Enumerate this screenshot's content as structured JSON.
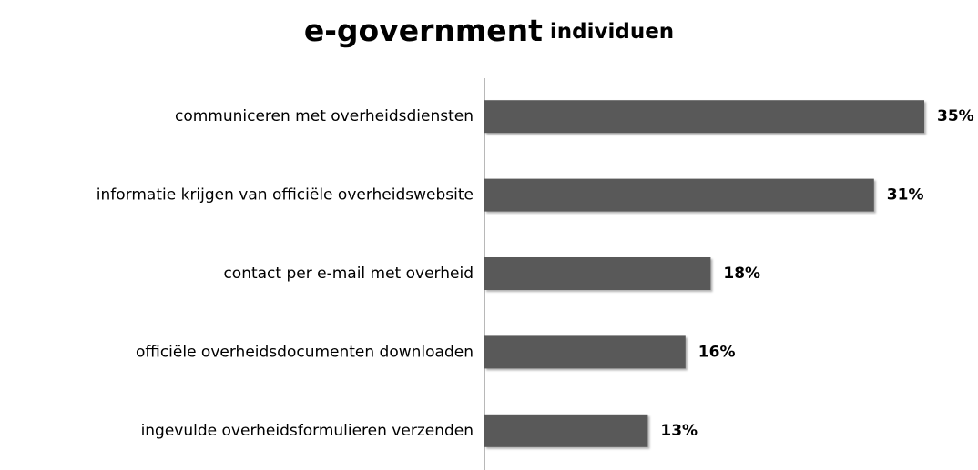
{
  "chart_data": {
    "type": "bar",
    "orientation": "horizontal",
    "title": "e-government",
    "subtitle": "individuen",
    "categories": [
      "communiceren met overheidsdiensten",
      "informatie krijgen van officiële overheidswebsite",
      "contact per e-mail met overheid",
      "officiële overheidsdocumenten downloaden",
      "ingevulde overheidsformulieren verzenden"
    ],
    "values": [
      35,
      31,
      18,
      16,
      13
    ],
    "value_labels": [
      "35%",
      "31%",
      "18%",
      "16%",
      "13%"
    ],
    "color": "#595959"
  }
}
